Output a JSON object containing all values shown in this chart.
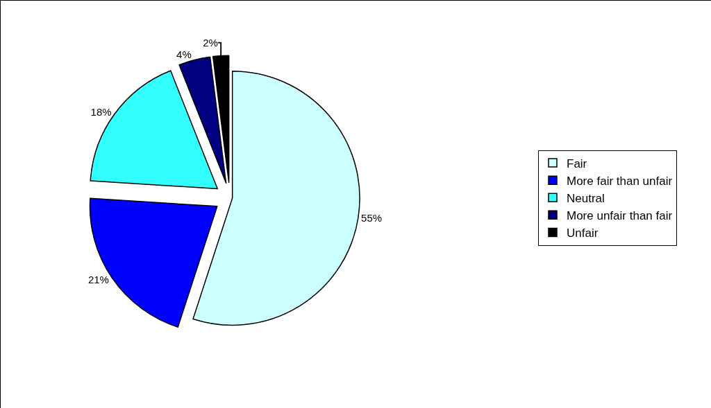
{
  "chart_data": {
    "type": "pie",
    "categories": [
      "Fair",
      "More fair than unfair",
      "Neutral",
      "More unfair than fair",
      "Unfair"
    ],
    "values": [
      55,
      21,
      18,
      4,
      2
    ],
    "value_labels": [
      "55%",
      "21%",
      "18%",
      "4%",
      "2%"
    ],
    "colors": [
      "#ccffff",
      "#0000ff",
      "#33ffff",
      "#000080",
      "#000000"
    ],
    "legend": "right"
  }
}
